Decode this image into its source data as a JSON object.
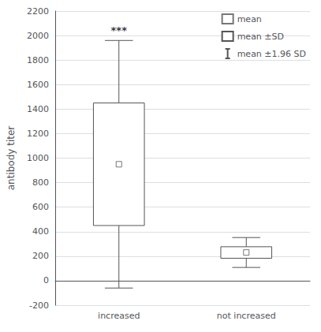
{
  "chart_data": {
    "type": "box",
    "categories": [
      "increased",
      "not increased"
    ],
    "mean": [
      950,
      230
    ],
    "box_low": [
      450,
      183
    ],
    "box_high": [
      1450,
      277
    ],
    "whisker_low": [
      -60,
      108
    ],
    "whisker_high": [
      1960,
      352
    ],
    "legend_labels": [
      "mean",
      "mean ±SD",
      "mean ±1.96 SD"
    ],
    "ylabel": "antibody titer",
    "ylim": [
      -200,
      2200
    ],
    "yticks": [
      -200,
      0,
      200,
      400,
      600,
      800,
      1000,
      1200,
      1400,
      1600,
      1800,
      2000,
      2200
    ],
    "grid": true,
    "legend": "upper right",
    "color": "#555555",
    "annotations": [
      {
        "text": "***",
        "category": "increased"
      }
    ]
  }
}
